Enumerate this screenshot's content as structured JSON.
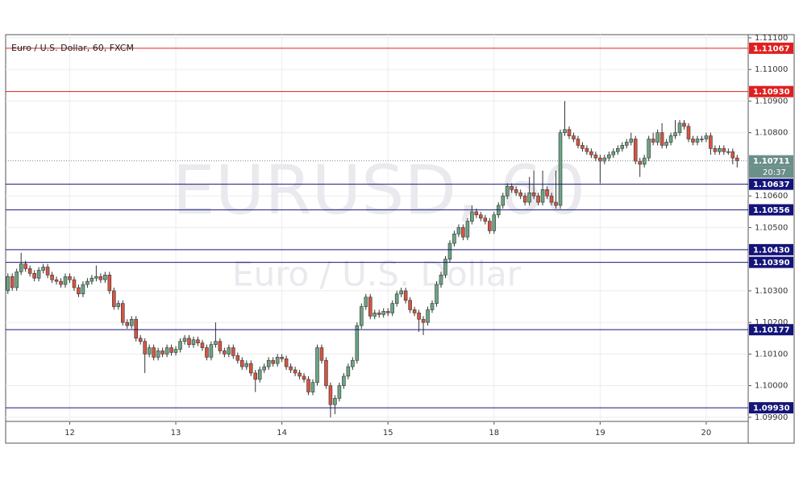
{
  "chart_data": {
    "type": "candlestick",
    "title": "Euro / U.S. Dollar, 60, FXCM",
    "watermark": "EURUSD, 60",
    "watermark_subtitle": "Euro / U.S. Dollar",
    "up_color": "#6ba583",
    "down_color": "#d75442",
    "grid": true,
    "ylim": [
      1.09887,
      1.1111
    ],
    "yticks": [
      {
        "value": 1.111,
        "label": "1.11100"
      },
      {
        "value": 1.11,
        "label": "1.11000"
      },
      {
        "value": 1.109,
        "label": "1.10900"
      },
      {
        "value": 1.108,
        "label": "1.10800"
      },
      {
        "value": 1.106,
        "label": "1.10600"
      },
      {
        "value": 1.105,
        "label": "1.10500"
      },
      {
        "value": 1.103,
        "label": "1.10300"
      },
      {
        "value": 1.102,
        "label": "1.10200"
      },
      {
        "value": 1.101,
        "label": "1.10100"
      },
      {
        "value": 1.1,
        "label": "1.10000"
      },
      {
        "value": 1.099,
        "label": "1.09900"
      }
    ],
    "xlim": [
      0,
      168
    ],
    "xticks": [
      {
        "value": 14.5,
        "label": "12"
      },
      {
        "value": 38.5,
        "label": "13"
      },
      {
        "value": 62.5,
        "label": "14"
      },
      {
        "value": 86.5,
        "label": "15"
      },
      {
        "value": 110.5,
        "label": "18"
      },
      {
        "value": 134.5,
        "label": "19"
      },
      {
        "value": 158.5,
        "label": "20"
      }
    ],
    "levels": [
      {
        "value": 1.11067,
        "color": "#e02020"
      },
      {
        "value": 1.1093,
        "label": "1.10930",
        "color": "#e02020"
      },
      {
        "value": 1.10637,
        "color": "#14147a"
      },
      {
        "value": 1.10556,
        "color": "#14147a"
      },
      {
        "value": 1.1043,
        "label": "1.10430",
        "color": "#14147a"
      },
      {
        "value": 1.1039,
        "label": "1.10390",
        "color": "#14147a"
      },
      {
        "value": 1.10177,
        "color": "#14147a"
      },
      {
        "value": 1.0993,
        "label": "1.09930",
        "color": "#14147a"
      }
    ],
    "last_price": 1.10711,
    "countdown": "20:37",
    "last_color": "#6b8f8a",
    "candles": [
      [
        1.103,
        1.10355,
        1.1029,
        1.10345
      ],
      [
        1.10345,
        1.10355,
        1.103,
        1.1031
      ],
      [
        1.1031,
        1.1037,
        1.103,
        1.1036
      ],
      [
        1.1036,
        1.1042,
        1.1035,
        1.10385
      ],
      [
        1.10385,
        1.10395,
        1.1036,
        1.1037
      ],
      [
        1.1037,
        1.1038,
        1.10345,
        1.10355
      ],
      [
        1.10355,
        1.10365,
        1.1033,
        1.1034
      ],
      [
        1.1034,
        1.10375,
        1.1033,
        1.10365
      ],
      [
        1.10365,
        1.10385,
        1.10355,
        1.10375
      ],
      [
        1.10375,
        1.10385,
        1.1034,
        1.1035
      ],
      [
        1.1035,
        1.1036,
        1.10325,
        1.10335
      ],
      [
        1.10335,
        1.10345,
        1.1032,
        1.1033
      ],
      [
        1.1033,
        1.1034,
        1.1031,
        1.1032
      ],
      [
        1.1032,
        1.10355,
        1.1031,
        1.10345
      ],
      [
        1.10345,
        1.10355,
        1.10325,
        1.10335
      ],
      [
        1.10335,
        1.10345,
        1.103,
        1.1031
      ],
      [
        1.1031,
        1.1032,
        1.1028,
        1.1029
      ],
      [
        1.1029,
        1.1033,
        1.1028,
        1.1032
      ],
      [
        1.1032,
        1.1034,
        1.1031,
        1.1033
      ],
      [
        1.1033,
        1.1035,
        1.1032,
        1.1034
      ],
      [
        1.1034,
        1.1038,
        1.1033,
        1.10345
      ],
      [
        1.10345,
        1.10355,
        1.10325,
        1.10335
      ],
      [
        1.10335,
        1.1036,
        1.10325,
        1.1035
      ],
      [
        1.1035,
        1.1036,
        1.1029,
        1.103
      ],
      [
        1.103,
        1.1031,
        1.1024,
        1.1025
      ],
      [
        1.1025,
        1.1027,
        1.1024,
        1.1026
      ],
      [
        1.1026,
        1.1027,
        1.1019,
        1.102
      ],
      [
        1.102,
        1.1021,
        1.1018,
        1.1019
      ],
      [
        1.1019,
        1.1022,
        1.1018,
        1.1021
      ],
      [
        1.1021,
        1.1022,
        1.1014,
        1.1015
      ],
      [
        1.1015,
        1.1016,
        1.1013,
        1.1014
      ],
      [
        1.1014,
        1.1015,
        1.1004,
        1.101
      ],
      [
        1.101,
        1.1013,
        1.1009,
        1.1012
      ],
      [
        1.1012,
        1.1013,
        1.1008,
        1.1009
      ],
      [
        1.1009,
        1.1012,
        1.1008,
        1.1011
      ],
      [
        1.1011,
        1.1012,
        1.1009,
        1.101
      ],
      [
        1.101,
        1.1013,
        1.1009,
        1.1012
      ],
      [
        1.1012,
        1.1013,
        1.10095,
        1.10105
      ],
      [
        1.10105,
        1.10125,
        1.10095,
        1.10115
      ],
      [
        1.10115,
        1.1015,
        1.10105,
        1.1014
      ],
      [
        1.1014,
        1.1016,
        1.1013,
        1.1015
      ],
      [
        1.1015,
        1.1016,
        1.1012,
        1.1013
      ],
      [
        1.1013,
        1.10155,
        1.1012,
        1.10145
      ],
      [
        1.10145,
        1.10155,
        1.10125,
        1.10135
      ],
      [
        1.10135,
        1.10145,
        1.1011,
        1.1012
      ],
      [
        1.1012,
        1.1013,
        1.1008,
        1.1009
      ],
      [
        1.1009,
        1.1014,
        1.1008,
        1.1013
      ],
      [
        1.1013,
        1.102,
        1.1012,
        1.1014
      ],
      [
        1.1014,
        1.1015,
        1.101,
        1.1011
      ],
      [
        1.1011,
        1.1012,
        1.1009,
        1.101
      ],
      [
        1.101,
        1.1013,
        1.1009,
        1.1012
      ],
      [
        1.1012,
        1.1013,
        1.10085,
        1.10095
      ],
      [
        1.10095,
        1.10105,
        1.1007,
        1.1008
      ],
      [
        1.1008,
        1.1009,
        1.1005,
        1.1006
      ],
      [
        1.1006,
        1.1008,
        1.1005,
        1.1007
      ],
      [
        1.1007,
        1.1008,
        1.1003,
        1.1004
      ],
      [
        1.1004,
        1.1005,
        1.0998,
        1.1002
      ],
      [
        1.1002,
        1.1006,
        1.1001,
        1.1005
      ],
      [
        1.1005,
        1.1007,
        1.1004,
        1.1006
      ],
      [
        1.1006,
        1.1009,
        1.1005,
        1.1008
      ],
      [
        1.1008,
        1.1009,
        1.1006,
        1.1007
      ],
      [
        1.1007,
        1.101,
        1.1006,
        1.1009
      ],
      [
        1.1009,
        1.101,
        1.10075,
        1.10085
      ],
      [
        1.10085,
        1.10095,
        1.1005,
        1.1006
      ],
      [
        1.1006,
        1.1007,
        1.1004,
        1.1005
      ],
      [
        1.1005,
        1.1006,
        1.1003,
        1.1004
      ],
      [
        1.1004,
        1.1005,
        1.1002,
        1.1003
      ],
      [
        1.1003,
        1.1004,
        1.1001,
        1.1002
      ],
      [
        1.1002,
        1.1003,
        1.0997,
        1.0998
      ],
      [
        1.0998,
        1.1002,
        1.0997,
        1.1001
      ],
      [
        1.1001,
        1.1013,
        1.1,
        1.1012
      ],
      [
        1.1012,
        1.1013,
        1.1007,
        1.1008
      ],
      [
        1.1008,
        1.1009,
        1.0999,
        1.1
      ],
      [
        1.1,
        1.1001,
        1.099,
        1.0994
      ],
      [
        1.0994,
        1.0997,
        1.0991,
        1.0996
      ],
      [
        1.0996,
        1.1001,
        1.0995,
        1.1
      ],
      [
        1.1,
        1.1004,
        1.0999,
        1.1003
      ],
      [
        1.1003,
        1.1007,
        1.1002,
        1.1006
      ],
      [
        1.1006,
        1.1009,
        1.1005,
        1.1008
      ],
      [
        1.1008,
        1.102,
        1.1007,
        1.1019
      ],
      [
        1.1019,
        1.1026,
        1.1018,
        1.1025
      ],
      [
        1.1025,
        1.1029,
        1.1024,
        1.1028
      ],
      [
        1.1028,
        1.1029,
        1.1021,
        1.1022
      ],
      [
        1.1022,
        1.1024,
        1.1021,
        1.1023
      ],
      [
        1.1023,
        1.1024,
        1.10215,
        1.10225
      ],
      [
        1.10225,
        1.10245,
        1.10215,
        1.10235
      ],
      [
        1.10235,
        1.10245,
        1.1022,
        1.1023
      ],
      [
        1.1023,
        1.1027,
        1.1022,
        1.1026
      ],
      [
        1.1026,
        1.103,
        1.1025,
        1.1029
      ],
      [
        1.1029,
        1.1031,
        1.1028,
        1.103
      ],
      [
        1.103,
        1.1031,
        1.1026,
        1.1027
      ],
      [
        1.1027,
        1.1028,
        1.1023,
        1.1024
      ],
      [
        1.1024,
        1.1025,
        1.1022,
        1.1023
      ],
      [
        1.1023,
        1.1024,
        1.1017,
        1.1021
      ],
      [
        1.1021,
        1.1022,
        1.1016,
        1.102
      ],
      [
        1.102,
        1.1025,
        1.1019,
        1.1024
      ],
      [
        1.1024,
        1.1027,
        1.1023,
        1.1026
      ],
      [
        1.1026,
        1.1033,
        1.1025,
        1.1032
      ],
      [
        1.1032,
        1.1036,
        1.1031,
        1.1035
      ],
      [
        1.1035,
        1.1041,
        1.1034,
        1.104
      ],
      [
        1.104,
        1.1046,
        1.1039,
        1.1045
      ],
      [
        1.1045,
        1.1049,
        1.1044,
        1.1048
      ],
      [
        1.1048,
        1.1051,
        1.1047,
        1.105
      ],
      [
        1.105,
        1.1051,
        1.1046,
        1.1047
      ],
      [
        1.1047,
        1.1053,
        1.1046,
        1.1052
      ],
      [
        1.1052,
        1.1057,
        1.1051,
        1.1055
      ],
      [
        1.1055,
        1.1056,
        1.1053,
        1.1054
      ],
      [
        1.1054,
        1.1055,
        1.1052,
        1.1053
      ],
      [
        1.1053,
        1.1054,
        1.1051,
        1.1052
      ],
      [
        1.1052,
        1.1053,
        1.1048,
        1.1049
      ],
      [
        1.1049,
        1.1055,
        1.1048,
        1.1054
      ],
      [
        1.1054,
        1.1058,
        1.1053,
        1.1057
      ],
      [
        1.1057,
        1.1061,
        1.1056,
        1.106
      ],
      [
        1.106,
        1.1064,
        1.1059,
        1.1063
      ],
      [
        1.1063,
        1.1064,
        1.1061,
        1.1062
      ],
      [
        1.1062,
        1.1063,
        1.106,
        1.1061
      ],
      [
        1.1061,
        1.1062,
        1.1059,
        1.106
      ],
      [
        1.106,
        1.1061,
        1.1057,
        1.1058
      ],
      [
        1.1058,
        1.1066,
        1.1057,
        1.1061
      ],
      [
        1.1061,
        1.1068,
        1.1059,
        1.106
      ],
      [
        1.106,
        1.1061,
        1.1057,
        1.1058
      ],
      [
        1.1058,
        1.1068,
        1.1057,
        1.1062
      ],
      [
        1.1062,
        1.1063,
        1.1059,
        1.106
      ],
      [
        1.106,
        1.1061,
        1.1057,
        1.1058
      ],
      [
        1.1058,
        1.1068,
        1.1056,
        1.1057
      ],
      [
        1.1057,
        1.1081,
        1.1056,
        1.108
      ],
      [
        1.108,
        1.109,
        1.1079,
        1.1081
      ],
      [
        1.1081,
        1.1082,
        1.1078,
        1.1079
      ],
      [
        1.1079,
        1.108,
        1.1077,
        1.1078
      ],
      [
        1.1078,
        1.1079,
        1.1075,
        1.1076
      ],
      [
        1.1076,
        1.1077,
        1.1074,
        1.1075
      ],
      [
        1.1075,
        1.1076,
        1.1073,
        1.1074
      ],
      [
        1.1074,
        1.1075,
        1.1072,
        1.1073
      ],
      [
        1.1073,
        1.1074,
        1.1071,
        1.1072
      ],
      [
        1.1072,
        1.1073,
        1.1064,
        1.1071
      ],
      [
        1.1071,
        1.1073,
        1.107,
        1.1072
      ],
      [
        1.1072,
        1.1074,
        1.1071,
        1.1073
      ],
      [
        1.1073,
        1.1075,
        1.1072,
        1.1074
      ],
      [
        1.1074,
        1.1076,
        1.1073,
        1.1075
      ],
      [
        1.1075,
        1.1077,
        1.1074,
        1.1076
      ],
      [
        1.1076,
        1.1078,
        1.1075,
        1.1077
      ],
      [
        1.1077,
        1.108,
        1.1076,
        1.1078
      ],
      [
        1.1078,
        1.1079,
        1.107,
        1.1071
      ],
      [
        1.1071,
        1.1072,
        1.1066,
        1.107
      ],
      [
        1.107,
        1.1073,
        1.1069,
        1.1072
      ],
      [
        1.1072,
        1.1079,
        1.1071,
        1.1078
      ],
      [
        1.1078,
        1.108,
        1.1076,
        1.1077
      ],
      [
        1.1077,
        1.1081,
        1.1076,
        1.108
      ],
      [
        1.108,
        1.1083,
        1.1075,
        1.1076
      ],
      [
        1.1076,
        1.1078,
        1.1075,
        1.1077
      ],
      [
        1.1077,
        1.108,
        1.1076,
        1.1079
      ],
      [
        1.1079,
        1.1084,
        1.1078,
        1.108
      ],
      [
        1.108,
        1.1084,
        1.1079,
        1.1083
      ],
      [
        1.1083,
        1.1084,
        1.1081,
        1.1082
      ],
      [
        1.1082,
        1.1083,
        1.1077,
        1.1078
      ],
      [
        1.1078,
        1.1079,
        1.1076,
        1.1077
      ],
      [
        1.1077,
        1.1079,
        1.1076,
        1.1078
      ],
      [
        1.1078,
        1.1079,
        1.1077,
        1.1078
      ],
      [
        1.1078,
        1.108,
        1.1077,
        1.1079
      ],
      [
        1.1079,
        1.108,
        1.1073,
        1.1075
      ],
      [
        1.1075,
        1.1076,
        1.1073,
        1.1074
      ],
      [
        1.1074,
        1.1076,
        1.1073,
        1.1075
      ],
      [
        1.1075,
        1.1076,
        1.1073,
        1.1074
      ],
      [
        1.1074,
        1.1075,
        1.1073,
        1.1074
      ],
      [
        1.1074,
        1.1075,
        1.107,
        1.1072
      ],
      [
        1.1072,
        1.1073,
        1.1069,
        1.10711
      ]
    ]
  }
}
